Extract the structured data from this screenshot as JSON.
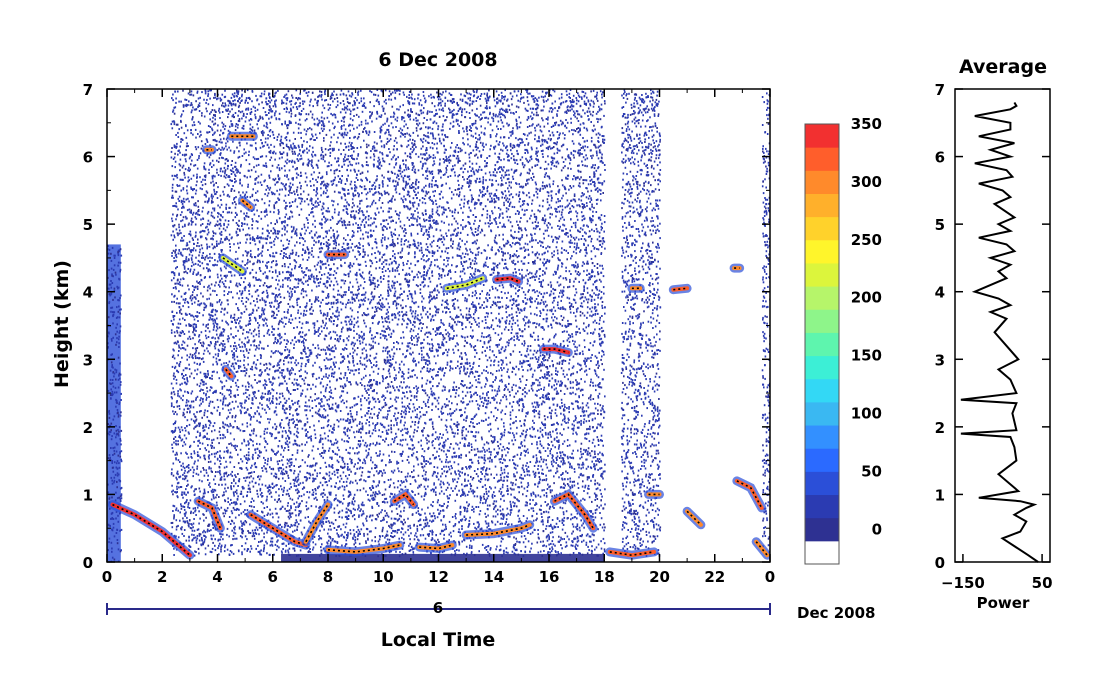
{
  "chart_data": [
    {
      "type": "heatmap",
      "title": "6 Dec 2008",
      "xlabel": "Local Time",
      "ylabel": "Height (km)",
      "xlim": [
        0,
        24
      ],
      "ylim": [
        0,
        7
      ],
      "x_ticks": [
        "0",
        "2",
        "4",
        "6",
        "8",
        "10",
        "12",
        "14",
        "16",
        "18",
        "20",
        "22",
        "0"
      ],
      "y_ticks": [
        "0",
        "1",
        "2",
        "3",
        "4",
        "5",
        "6",
        "7"
      ],
      "date_axis": {
        "day_label": "6",
        "month_label": "Dec 2008"
      },
      "colorbar": {
        "ticks": [
          "350",
          "300",
          "250",
          "200",
          "150",
          "100",
          "50",
          "0"
        ],
        "colors": [
          "#ffffff",
          "#2e3192",
          "#2b3bb2",
          "#2b4fd8",
          "#2b6aff",
          "#3390ff",
          "#3ab8f2",
          "#33d8f5",
          "#3cefd6",
          "#5ef5ae",
          "#8ef58a",
          "#b6f56a",
          "#dcf53c",
          "#fff52b",
          "#ffd22b",
          "#ffb02b",
          "#ff8a2b",
          "#ff5e2b",
          "#f23030"
        ]
      },
      "layers": [
        {
          "t0": 0.0,
          "t1": 0.5,
          "h0": 0.0,
          "h1": 4.7,
          "value": 30
        },
        {
          "t0": 2.3,
          "t1": 6.3,
          "h0": 0.1,
          "h1": 7.0,
          "value": 10
        },
        {
          "t0": 6.3,
          "t1": 18.0,
          "h0": 0.1,
          "h1": 7.0,
          "value": 15
        },
        {
          "t0": 18.6,
          "t1": 20.0,
          "h0": 0.1,
          "h1": 7.0,
          "value": 10
        },
        {
          "t0": 23.7,
          "t1": 24.0,
          "h0": 0.1,
          "h1": 7.0,
          "value": 10
        }
      ],
      "features": [
        {
          "t": [
            0.2,
            1.0,
            2.0,
            3.0
          ],
          "h": [
            0.85,
            0.7,
            0.45,
            0.1
          ],
          "value": 340
        },
        {
          "t": [
            3.3,
            3.8,
            4.1
          ],
          "h": [
            0.9,
            0.8,
            0.5
          ],
          "value": 320
        },
        {
          "t": [
            5.2,
            6.0,
            6.8,
            7.2
          ],
          "h": [
            0.7,
            0.5,
            0.3,
            0.25
          ],
          "value": 330
        },
        {
          "t": [
            7.2,
            7.6,
            8.0
          ],
          "h": [
            0.3,
            0.6,
            0.85
          ],
          "value": 300
        },
        {
          "t": [
            8.0,
            9.0,
            10.0,
            10.6
          ],
          "h": [
            0.18,
            0.15,
            0.2,
            0.25
          ],
          "value": 310
        },
        {
          "t": [
            10.4,
            10.8,
            11.1
          ],
          "h": [
            0.9,
            1.0,
            0.85
          ],
          "value": 320
        },
        {
          "t": [
            11.3,
            12.0,
            12.5
          ],
          "h": [
            0.22,
            0.2,
            0.25
          ],
          "value": 310
        },
        {
          "t": [
            13.0,
            14.0,
            15.0,
            15.3
          ],
          "h": [
            0.4,
            0.42,
            0.5,
            0.55
          ],
          "value": 300
        },
        {
          "t": [
            14.1,
            14.6,
            14.9
          ],
          "h": [
            4.18,
            4.2,
            4.15
          ],
          "value": 340
        },
        {
          "t": [
            12.3,
            13.0,
            13.6
          ],
          "h": [
            4.05,
            4.1,
            4.2
          ],
          "value": 220
        },
        {
          "t": [
            15.8,
            16.2,
            16.7
          ],
          "h": [
            3.15,
            3.15,
            3.1
          ],
          "value": 340
        },
        {
          "t": [
            16.2,
            16.7,
            17.3,
            17.6
          ],
          "h": [
            0.9,
            1.0,
            0.7,
            0.5
          ],
          "value": 320
        },
        {
          "t": [
            18.2,
            19.0,
            19.8
          ],
          "h": [
            0.15,
            0.1,
            0.15
          ],
          "value": 320
        },
        {
          "t": [
            19.6,
            20.0
          ],
          "h": [
            1.0,
            1.0
          ],
          "value": 300
        },
        {
          "t": [
            20.5,
            21.0
          ],
          "h": [
            4.03,
            4.05
          ],
          "value": 320
        },
        {
          "t": [
            21.0,
            21.5
          ],
          "h": [
            0.75,
            0.55
          ],
          "value": 300
        },
        {
          "t": [
            22.8,
            23.3,
            23.7
          ],
          "h": [
            1.2,
            1.1,
            0.8
          ],
          "value": 330
        },
        {
          "t": [
            23.5,
            23.9
          ],
          "h": [
            0.3,
            0.1
          ],
          "value": 300
        },
        {
          "t": [
            4.2,
            4.9
          ],
          "h": [
            4.5,
            4.3
          ],
          "value": 220
        },
        {
          "t": [
            4.3,
            4.5
          ],
          "h": [
            2.85,
            2.75
          ],
          "value": 330
        },
        {
          "t": [
            4.9,
            5.2
          ],
          "h": [
            5.35,
            5.25
          ],
          "value": 300
        },
        {
          "t": [
            3.6,
            3.8
          ],
          "h": [
            6.1,
            6.1
          ],
          "value": 310
        },
        {
          "t": [
            4.5,
            5.3
          ],
          "h": [
            6.3,
            6.3
          ],
          "value": 300
        },
        {
          "t": [
            8.0,
            8.6
          ],
          "h": [
            4.55,
            4.55
          ],
          "value": 330
        },
        {
          "t": [
            19.0,
            19.3
          ],
          "h": [
            4.05,
            4.05
          ],
          "value": 300
        },
        {
          "t": [
            22.7,
            22.9
          ],
          "h": [
            4.35,
            4.35
          ],
          "value": 300
        }
      ]
    },
    {
      "type": "line",
      "title": "Average",
      "xlabel": "Power",
      "xlim": [
        -170,
        70
      ],
      "ylim": [
        0,
        7
      ],
      "x_ticks": [
        "−150",
        "50"
      ],
      "x_tick_values": [
        -150,
        50
      ],
      "y_ticks": [
        "0",
        "1",
        "2",
        "3",
        "4",
        "5",
        "6",
        "7"
      ],
      "series": [
        {
          "x": [
            40,
            15,
            -50,
            -5,
            10,
            -20,
            10,
            30,
            -5,
            -110,
            -10,
            -60,
            -15,
            -20,
            -30,
            -155,
            -15,
            -25,
            -15,
            -155,
            -15,
            -30,
            -60,
            -10,
            -40,
            -70,
            -40,
            -80,
            -30,
            -60,
            -120,
            -40,
            -60,
            -30,
            -80,
            -20,
            -40,
            -110,
            -30,
            -60,
            -20,
            -70,
            -30,
            -50,
            -110,
            -25,
            -40,
            -120,
            -30,
            -80,
            -20,
            -110,
            -30,
            -30,
            -120,
            -30,
            -15,
            -20
          ],
          "y": [
            0.0,
            0.1,
            0.35,
            0.45,
            0.6,
            0.7,
            0.8,
            0.85,
            0.9,
            0.95,
            1.05,
            1.3,
            1.5,
            1.7,
            1.85,
            1.9,
            1.95,
            2.2,
            2.35,
            2.4,
            2.5,
            2.7,
            2.85,
            3.0,
            3.2,
            3.4,
            3.6,
            3.7,
            3.8,
            3.9,
            4.0,
            4.2,
            4.3,
            4.4,
            4.5,
            4.6,
            4.7,
            4.8,
            4.9,
            5.0,
            5.1,
            5.3,
            5.4,
            5.5,
            5.6,
            5.7,
            5.8,
            5.9,
            6.0,
            6.1,
            6.2,
            6.3,
            6.4,
            6.5,
            6.6,
            6.7,
            6.75,
            6.8
          ]
        }
      ]
    }
  ]
}
